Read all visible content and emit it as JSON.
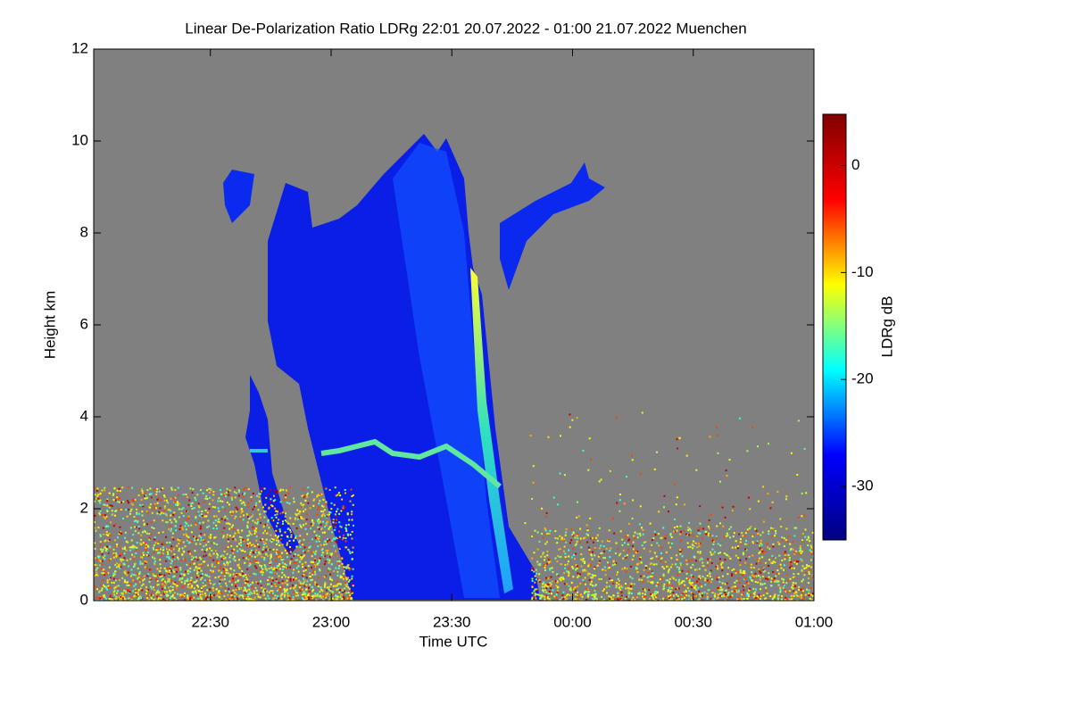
{
  "chart_data": {
    "type": "heatmap",
    "title": "Linear De-Polarization Ratio LDRg   22:01 20.07.2022 - 01:00 21.07.2022 Muenchen",
    "xlabel": "Time UTC",
    "ylabel": "Height km",
    "colorbar_label": "LDRg dB",
    "xlim": [
      22.0167,
      25
    ],
    "xticks": [
      {
        "value": 22.5,
        "label": "22:30"
      },
      {
        "value": 23,
        "label": "23:00"
      },
      {
        "value": 23.5,
        "label": "23:30"
      },
      {
        "value": 24,
        "label": "00:00"
      },
      {
        "value": 24.5,
        "label": "00:30"
      },
      {
        "value": 25,
        "label": "01:00"
      }
    ],
    "ylim": [
      0,
      12
    ],
    "yticks": [
      0,
      2,
      4,
      6,
      8,
      10,
      12
    ],
    "clim": [
      -35,
      4.8
    ],
    "cticks": [
      0,
      -10,
      -20,
      -30
    ],
    "colormap": [
      "#00007f",
      "#0000ff",
      "#00ffff",
      "#ffff00",
      "#ff0000",
      "#7f0000"
    ],
    "background": "#808080"
  }
}
